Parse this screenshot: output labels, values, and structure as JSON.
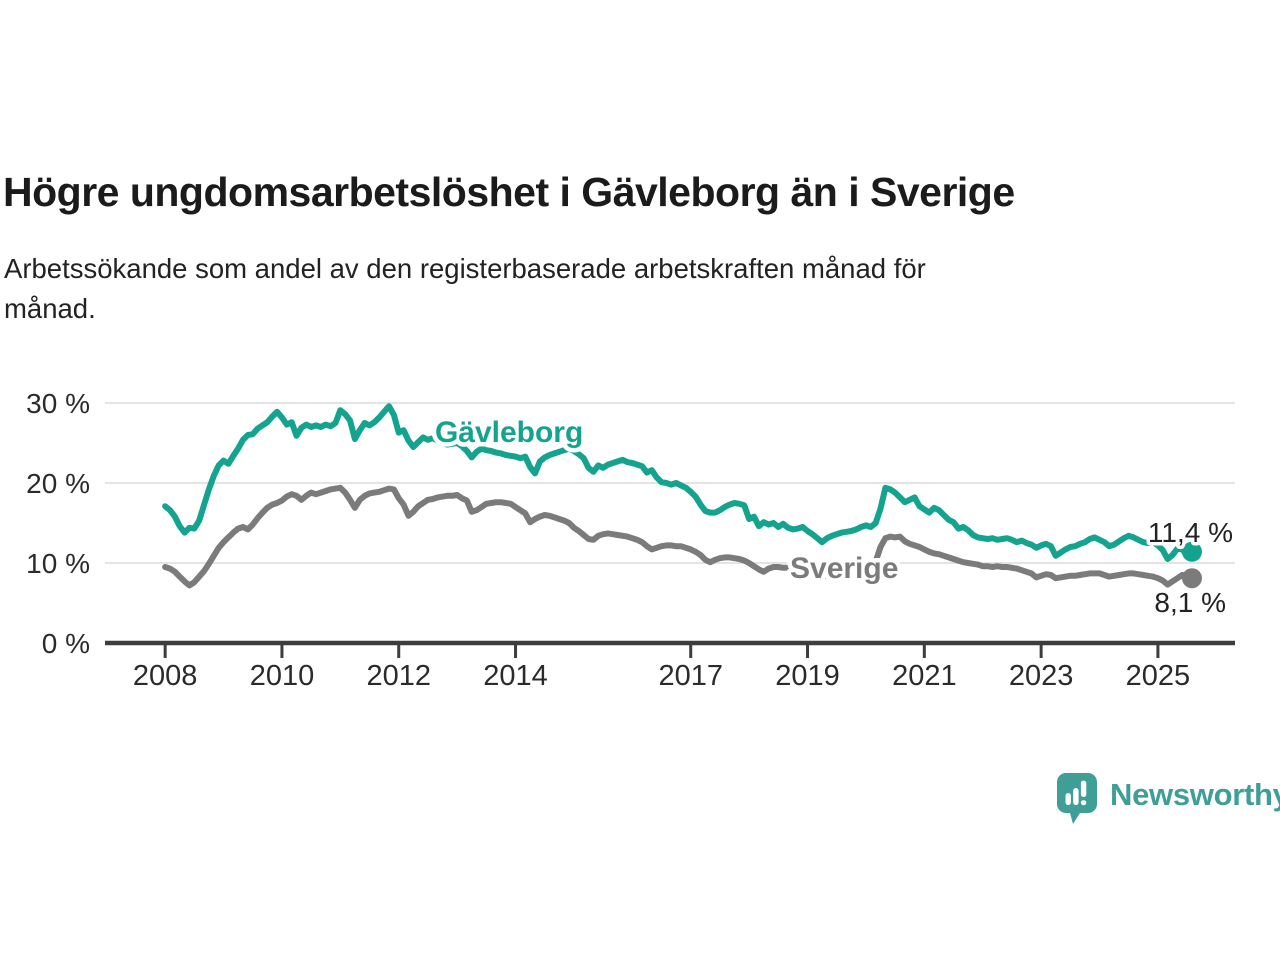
{
  "header": {
    "title": "Högre ungdomsarbetslöshet i Gävleborg än i Sverige",
    "subtitle_lines": [
      "Arbetssökande som andel av den registerbaserade arbetskraften månad för",
      "månad."
    ]
  },
  "footer": {
    "brand": "Newsworthy",
    "brand_color": "#3f9e95",
    "logo_icon": "newsworthy-speech-bubble-bars-icon"
  },
  "chart_data": {
    "type": "line",
    "title": "",
    "xlabel": "",
    "ylabel": "",
    "x_start_year": 2008.0,
    "x_step_years": 0.0833333,
    "xlim": [
      2006.97,
      2026.32
    ],
    "ylim": [
      0,
      33
    ],
    "grid": "horizontal",
    "axis_color": "#3d3d3d",
    "grid_color": "#e4e4e4",
    "tick_label_color": "#2b2b2b",
    "x_ticks": [
      {
        "year": 2008,
        "label": "2008"
      },
      {
        "year": 2010,
        "label": "2010"
      },
      {
        "year": 2012,
        "label": "2012"
      },
      {
        "year": 2014,
        "label": "2014"
      },
      {
        "year": 2017,
        "label": "2017"
      },
      {
        "year": 2019,
        "label": "2019"
      },
      {
        "year": 2021,
        "label": "2021"
      },
      {
        "year": 2023,
        "label": "2023"
      },
      {
        "year": 2025,
        "label": "2025"
      }
    ],
    "y_ticks": [
      {
        "value": 0,
        "label": "0 %"
      },
      {
        "value": 10,
        "label": "10 %"
      },
      {
        "value": 20,
        "label": "20 %"
      },
      {
        "value": 30,
        "label": "30 %"
      }
    ],
    "series": [
      {
        "name": "Gävleborg",
        "color": "#14a38f",
        "end_value_label": "11,4 %",
        "end_value": 11.4,
        "label_anchor": {
          "year": 2012.62,
          "value": 26.4
        },
        "values": [
          17.1,
          16.6,
          15.8,
          14.6,
          13.8,
          14.4,
          14.3,
          15.3,
          17.3,
          19.2,
          20.9,
          22.2,
          22.8,
          22.4,
          23.4,
          24.3,
          25.4,
          26.0,
          26.1,
          26.8,
          27.2,
          27.6,
          28.3,
          28.9,
          28.2,
          27.3,
          27.6,
          25.9,
          26.9,
          27.3,
          27.0,
          27.2,
          27.0,
          27.3,
          27.1,
          27.5,
          29.1,
          28.6,
          27.8,
          25.5,
          26.6,
          27.5,
          27.2,
          27.6,
          28.2,
          28.9,
          29.6,
          28.5,
          26.3,
          26.6,
          25.3,
          24.5,
          25.1,
          25.7,
          25.4,
          25.6,
          25.3,
          25.0,
          24.8,
          24.9,
          25.0,
          24.6,
          24.0,
          23.2,
          23.9,
          24.3,
          24.1,
          24.0,
          23.8,
          23.7,
          23.5,
          23.4,
          23.3,
          23.1,
          23.3,
          22.0,
          21.2,
          22.7,
          23.2,
          23.5,
          23.7,
          23.9,
          24.1,
          24.3,
          24.0,
          23.6,
          23.1,
          21.9,
          21.4,
          22.2,
          21.9,
          22.3,
          22.5,
          22.7,
          22.9,
          22.6,
          22.5,
          22.3,
          22.1,
          21.3,
          21.6,
          20.7,
          20.1,
          20.0,
          19.8,
          20.0,
          19.7,
          19.4,
          18.9,
          18.3,
          17.3,
          16.5,
          16.3,
          16.3,
          16.6,
          17.0,
          17.3,
          17.5,
          17.4,
          17.2,
          15.5,
          15.8,
          14.6,
          15.1,
          14.8,
          15.0,
          14.5,
          14.9,
          14.4,
          14.2,
          14.3,
          14.5,
          14.0,
          13.6,
          13.1,
          12.6,
          13.1,
          13.4,
          13.6,
          13.8,
          13.9,
          14.0,
          14.2,
          14.5,
          14.7,
          14.5,
          15.0,
          16.8,
          19.4,
          19.2,
          18.8,
          18.2,
          17.6,
          17.9,
          18.2,
          17.1,
          16.7,
          16.3,
          16.9,
          16.6,
          16.0,
          15.4,
          15.1,
          14.3,
          14.5,
          14.1,
          13.5,
          13.2,
          13.1,
          13.0,
          13.1,
          12.9,
          13.0,
          13.1,
          12.9,
          12.6,
          12.8,
          12.5,
          12.3,
          11.9,
          12.2,
          12.4,
          12.1,
          10.9,
          11.3,
          11.7,
          12.0,
          12.1,
          12.4,
          12.6,
          13.0,
          13.2,
          12.9,
          12.6,
          12.1,
          12.3,
          12.7,
          13.1,
          13.4,
          13.2,
          12.9,
          12.6,
          12.5,
          12.6,
          12.2,
          11.6,
          10.5,
          11.0,
          11.8,
          11.7,
          11.0,
          11.4
        ]
      },
      {
        "name": "Sverige",
        "color": "#7b7b7b",
        "end_value_label": "8,1 %",
        "end_value": 8.1,
        "label_anchor": {
          "year": 2018.7,
          "value": 9.4
        },
        "values": [
          9.5,
          9.3,
          8.9,
          8.3,
          7.7,
          7.2,
          7.6,
          8.3,
          9.0,
          9.9,
          10.9,
          11.9,
          12.6,
          13.2,
          13.8,
          14.3,
          14.5,
          14.2,
          14.8,
          15.6,
          16.3,
          16.9,
          17.3,
          17.5,
          17.8,
          18.3,
          18.6,
          18.4,
          17.9,
          18.4,
          18.8,
          18.6,
          18.8,
          19.0,
          19.2,
          19.3,
          19.4,
          18.8,
          17.9,
          16.9,
          17.9,
          18.4,
          18.7,
          18.8,
          18.9,
          19.1,
          19.3,
          19.2,
          18.1,
          17.3,
          15.9,
          16.4,
          17.1,
          17.5,
          17.9,
          18.0,
          18.2,
          18.3,
          18.4,
          18.4,
          18.5,
          18.1,
          17.8,
          16.4,
          16.6,
          17.0,
          17.4,
          17.5,
          17.6,
          17.6,
          17.5,
          17.4,
          17.0,
          16.6,
          16.2,
          15.1,
          15.5,
          15.8,
          16.0,
          15.9,
          15.7,
          15.5,
          15.3,
          15.0,
          14.4,
          14.0,
          13.5,
          13.0,
          12.9,
          13.4,
          13.6,
          13.7,
          13.6,
          13.5,
          13.4,
          13.3,
          13.1,
          12.9,
          12.6,
          12.1,
          11.7,
          11.9,
          12.1,
          12.2,
          12.2,
          12.1,
          12.1,
          11.9,
          11.7,
          11.4,
          11.0,
          10.4,
          10.1,
          10.4,
          10.6,
          10.7,
          10.7,
          10.6,
          10.5,
          10.3,
          10.0,
          9.6,
          9.2,
          8.9,
          9.3,
          9.5,
          9.5,
          9.4,
          9.4,
          9.3,
          9.2,
          9.2,
          9.2,
          9.0,
          8.6,
          8.3,
          8.4,
          8.7,
          8.9,
          9.0,
          9.0,
          9.1,
          9.1,
          9.2,
          9.3,
          9.4,
          10.2,
          12.0,
          13.1,
          13.3,
          13.2,
          13.3,
          12.7,
          12.4,
          12.2,
          12.0,
          11.7,
          11.4,
          11.2,
          11.1,
          10.9,
          10.7,
          10.5,
          10.3,
          10.1,
          10.0,
          9.9,
          9.8,
          9.6,
          9.6,
          9.5,
          9.6,
          9.5,
          9.5,
          9.4,
          9.3,
          9.1,
          8.9,
          8.7,
          8.2,
          8.4,
          8.6,
          8.5,
          8.1,
          8.2,
          8.3,
          8.4,
          8.4,
          8.5,
          8.6,
          8.7,
          8.7,
          8.7,
          8.5,
          8.3,
          8.4,
          8.5,
          8.6,
          8.7,
          8.7,
          8.6,
          8.5,
          8.4,
          8.3,
          8.1,
          7.8,
          7.3,
          7.7,
          8.1,
          8.5,
          8.4,
          8.1
        ]
      }
    ]
  }
}
